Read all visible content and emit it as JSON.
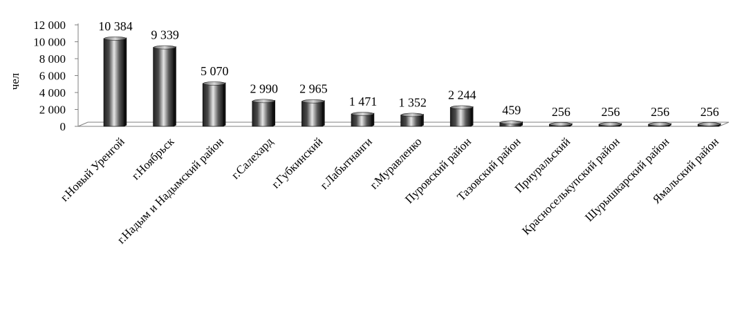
{
  "chart_data": {
    "type": "bar",
    "title": "",
    "xlabel": "",
    "ylabel": "чел",
    "ylim": [
      0,
      12000
    ],
    "yticks": [
      0,
      2000,
      4000,
      6000,
      8000,
      10000,
      12000
    ],
    "ytick_labels": [
      "0",
      "2 000",
      "4 000",
      "6 000",
      "8 000",
      "10 000",
      "12 000"
    ],
    "grid": false,
    "legend": "none",
    "categories": [
      "г.Новый Уренгой",
      "г.Ноябрьск",
      "г.Надым и Надымский район",
      "г.Салехард",
      "г.Губкинский",
      "г.Лабытнанги",
      "г.Муравленко",
      "Пуровский район",
      "Тазовский район",
      "Приуральский",
      "Красноселькупский район",
      "Шурышкарский район",
      "Ямальский район"
    ],
    "values": [
      10384,
      9339,
      5070,
      2990,
      2965,
      1471,
      1352,
      2244,
      459,
      256,
      256,
      256,
      256
    ],
    "data_labels": [
      "10 384",
      "9 339",
      "5 070",
      "2 990",
      "2 965",
      "1 471",
      "1 352",
      "2 244",
      "459",
      "256",
      "256",
      "256",
      "256"
    ],
    "colors": {
      "bar_dark": "#1a1a1a",
      "bar_light": "#e8e8e8",
      "axis": "#7f7f7f",
      "floor": "#ffffff",
      "text": "#000000"
    }
  }
}
